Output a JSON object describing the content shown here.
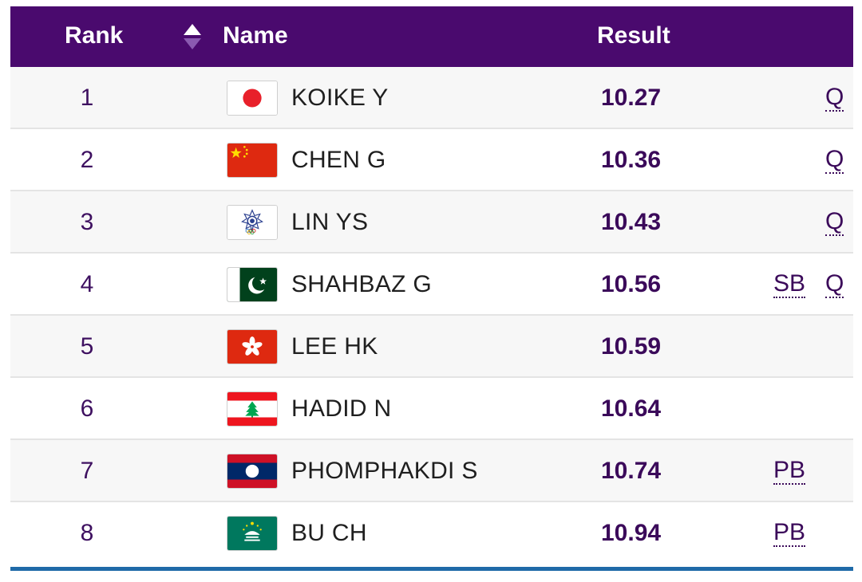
{
  "header": {
    "rank_label": "Rank",
    "name_label": "Name",
    "result_label": "Result"
  },
  "colors": {
    "header_bg": "#4a0a6e",
    "result_text": "#3b0a5a",
    "bottom_rule": "#1f6aa8"
  },
  "rows": [
    {
      "rank": "1",
      "flag": "japan-flag-icon",
      "name": "KOIKE Y",
      "result": "10.27",
      "badges": [
        "Q"
      ]
    },
    {
      "rank": "2",
      "flag": "china-flag-icon",
      "name": "CHEN G",
      "result": "10.36",
      "badges": [
        "Q"
      ]
    },
    {
      "rank": "3",
      "flag": "chinese-taipei-flag-icon",
      "name": "LIN YS",
      "result": "10.43",
      "badges": [
        "Q"
      ]
    },
    {
      "rank": "4",
      "flag": "pakistan-flag-icon",
      "name": "SHAHBAZ G",
      "result": "10.56",
      "badges": [
        "SB",
        "Q"
      ]
    },
    {
      "rank": "5",
      "flag": "hong-kong-flag-icon",
      "name": "LEE HK",
      "result": "10.59",
      "badges": []
    },
    {
      "rank": "6",
      "flag": "lebanon-flag-icon",
      "name": "HADID N",
      "result": "10.64",
      "badges": []
    },
    {
      "rank": "7",
      "flag": "laos-flag-icon",
      "name": "PHOMPHAKDI S",
      "result": "10.74",
      "badges": [
        "PB"
      ]
    },
    {
      "rank": "8",
      "flag": "macau-flag-icon",
      "name": "BU CH",
      "result": "10.94",
      "badges": [
        "PB"
      ]
    }
  ]
}
